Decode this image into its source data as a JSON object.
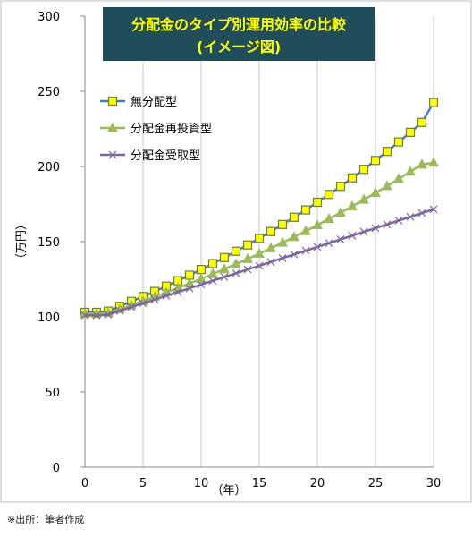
{
  "chart_data": {
    "type": "line",
    "title_line1": "分配金のタイプ別運用効率の比較",
    "title_line2": "(イメージ図)",
    "xlabel": "（年）",
    "ylabel": "（万円）",
    "xlim": [
      0,
      30
    ],
    "ylim": [
      0,
      300
    ],
    "x_ticks": [
      "0",
      "5",
      "10",
      "15",
      "20",
      "25",
      "30"
    ],
    "y_ticks": [
      "0",
      "50",
      "100",
      "150",
      "200",
      "250",
      "300"
    ],
    "grid": "vertical",
    "legend_position": "top-left",
    "x": [
      0,
      1,
      2,
      3,
      4,
      5,
      6,
      7,
      8,
      9,
      10,
      11,
      12,
      13,
      14,
      15,
      16,
      17,
      18,
      19,
      20,
      21,
      22,
      23,
      24,
      25,
      26,
      27,
      28,
      29,
      30
    ],
    "series": [
      {
        "name": "無分配型",
        "color": "#4a7ebb",
        "marker": "square",
        "marker_color": "#ffff00",
        "values": [
          103,
          103,
          103.8,
          107.0,
          110.3,
          113.5,
          116.9,
          120.4,
          124.0,
          127.7,
          131.5,
          135.4,
          139.4,
          143.6,
          147.8,
          152.2,
          156.7,
          161.4,
          166.2,
          171.1,
          176.2,
          181.4,
          186.8,
          192.4,
          198.1,
          204.0,
          210.0,
          216.3,
          222.7,
          229.3,
          242.5
        ]
      },
      {
        "name": "分配金再投資型",
        "color": "#9bbb59",
        "marker": "triangle",
        "marker_color": "#9bbb59",
        "values": [
          102,
          102,
          102.5,
          105.1,
          107.8,
          110.5,
          113.3,
          116.2,
          119.1,
          122.2,
          125.3,
          128.5,
          131.7,
          135.1,
          138.5,
          142.0,
          145.6,
          149.3,
          153.1,
          157.0,
          161.0,
          165.1,
          169.3,
          173.5,
          177.9,
          182.4,
          187.0,
          191.7,
          196.6,
          201.3,
          202.5
        ]
      },
      {
        "name": "分配金受取型",
        "color": "#8064a2",
        "marker": "x",
        "marker_color": "#8064a2",
        "values": [
          101,
          101,
          101.5,
          104.0,
          106.5,
          109.0,
          111.5,
          114.0,
          116.5,
          119.0,
          121.5,
          124.0,
          126.5,
          129.0,
          131.5,
          134.0,
          136.5,
          139.0,
          141.5,
          144.0,
          146.5,
          149.0,
          151.5,
          154.0,
          156.5,
          159.0,
          161.5,
          164.0,
          166.5,
          169.0,
          171.5
        ]
      }
    ]
  },
  "source_note": "※出所：筆者作成",
  "colors": {
    "title_bg": "#1f4e5a",
    "title_text": "#ffff00",
    "axis_text": "#000000",
    "grid": "#c8c8c8",
    "frame": "#bfbfbf"
  }
}
